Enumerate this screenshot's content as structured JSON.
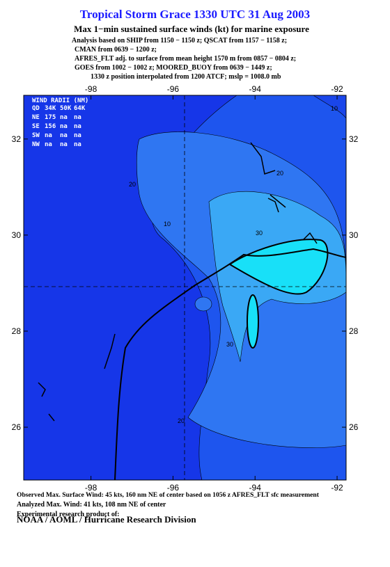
{
  "header": {
    "title": "Tropical Storm Grace 1330 UTC 31 Aug 2003",
    "subtitle": "Max 1−min sustained surface winds (kt) for marine exposure",
    "notes": [
      "Analysis based on  SHIP from 1150 − 1150 z;  QSCAT from 1157 − 1158 z;",
      "CMAN from 0639 − 1200 z;",
      "AFRES_FLT adj. to surface from mean height 1570 m from 0857 − 0804 z;",
      "GOES from 1002 − 1002 z;  MOORED_BUOY from 0639 − 1449 z;",
      "1330 z position interpolated from 1200 ATCF; mslp = 1008.0 mb"
    ]
  },
  "map": {
    "xlim": [
      -99.64,
      -91.78
    ],
    "ylim": [
      24.9,
      32.91
    ],
    "xticks": [
      -98,
      -96,
      -94,
      -92
    ],
    "yticks": [
      26,
      28,
      30,
      32
    ],
    "contour_labels": [
      10,
      10,
      20,
      20,
      20,
      30,
      30
    ]
  },
  "wind_radii": {
    "title": "WIND RADII (NM)",
    "header": [
      "QD",
      "34K",
      "50K",
      "64K"
    ],
    "rows": [
      [
        "NE",
        "175",
        "na",
        "na"
      ],
      [
        "SE",
        "156",
        "na",
        "na"
      ],
      [
        "SW",
        "na",
        "na",
        "na"
      ],
      [
        "NW",
        "na",
        "na",
        "na"
      ]
    ]
  },
  "footer": {
    "lines": [
      "Observed Max. Surface Wind: 45 kts, 160 nm NE of center based on 1056 z AFRES_FLT sfc measurement",
      "Analyzed Max. Wind: 41 kts, 108 nm NE of center",
      "Experimental research product of:"
    ],
    "org": "NOAA / AOML / Hurricane Research Division"
  }
}
